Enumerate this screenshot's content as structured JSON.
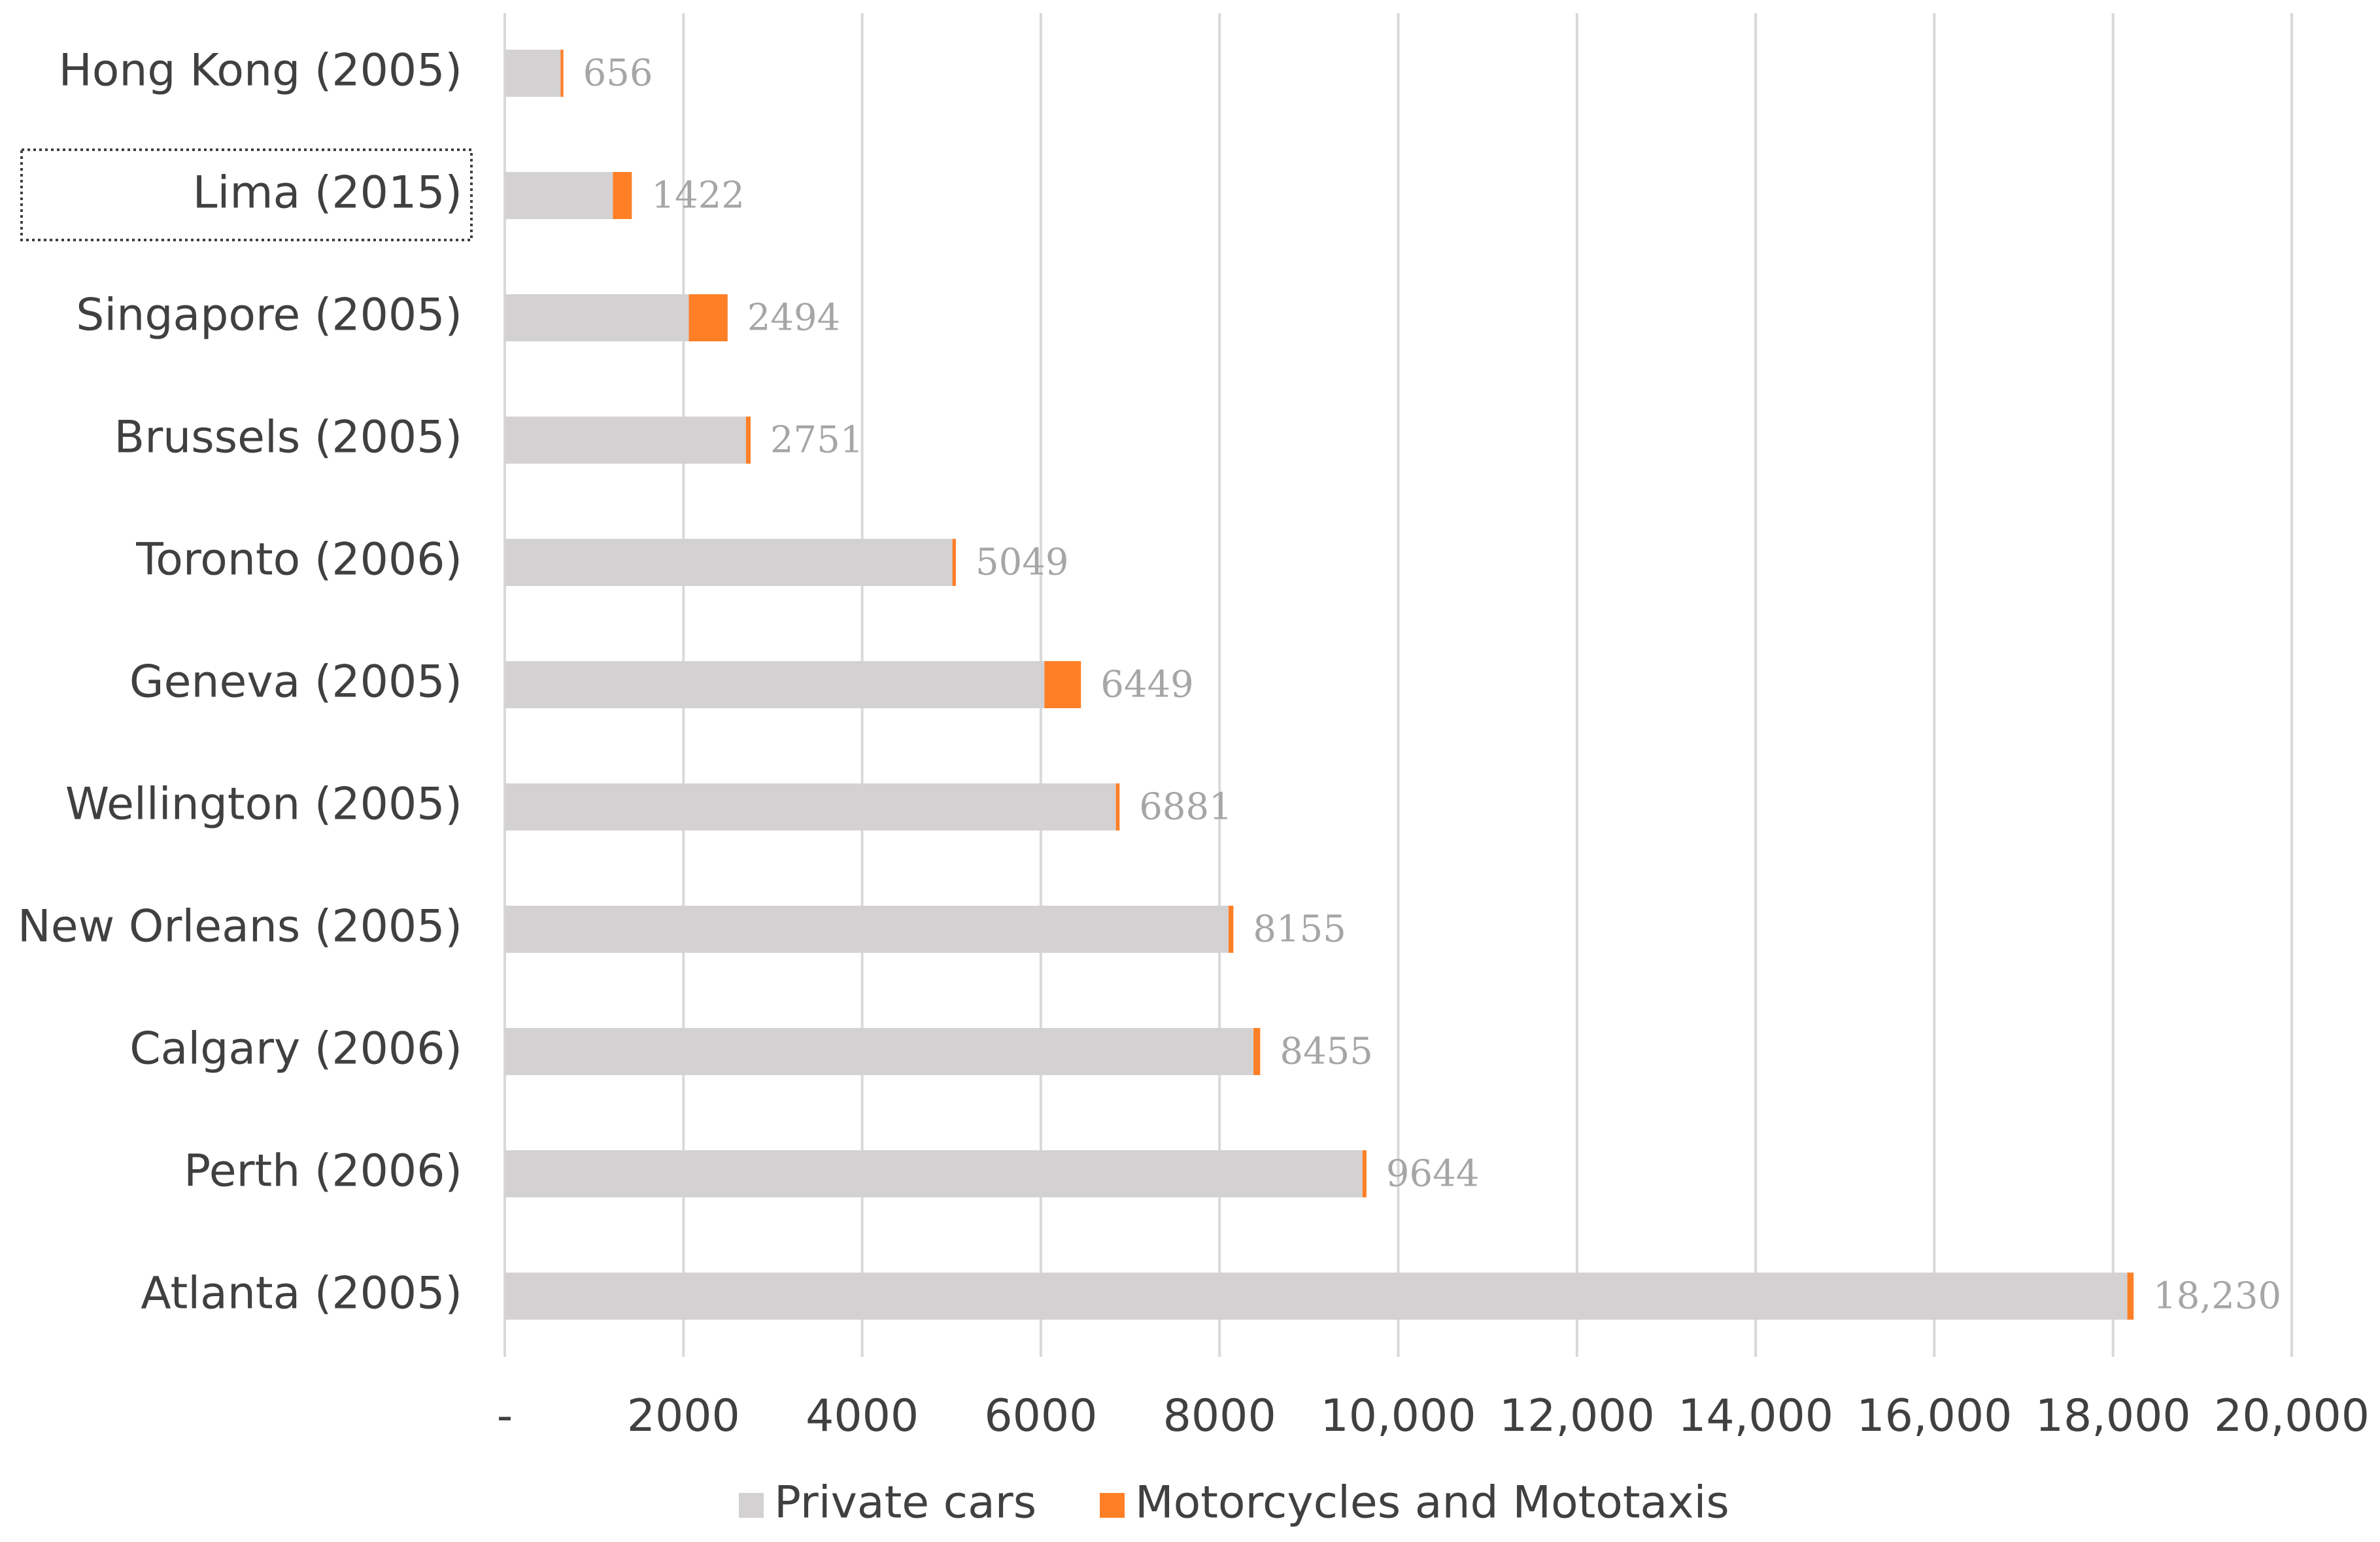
{
  "chart_data": {
    "type": "bar",
    "orientation": "horizontal",
    "stacked": true,
    "categories": [
      "Hong Kong (2005)",
      "Lima (2015)",
      "Singapore (2005)",
      "Brussels (2005)",
      "Toronto (2006)",
      "Geneva (2005)",
      "Wellington (2005)",
      "New Orleans (2005)",
      "Calgary (2006)",
      "Perth (2006)",
      "Atlanta (2005)"
    ],
    "series": [
      {
        "name": "Private cars",
        "color": "#d3d1d1",
        "values": [
          625,
          1210,
          2060,
          2700,
          5010,
          6040,
          6840,
          8100,
          8380,
          9600,
          18160
        ]
      },
      {
        "name": "Motorcycles and Mototaxis",
        "color": "#ff7f27",
        "values": [
          31,
          212,
          434,
          51,
          39,
          409,
          41,
          55,
          75,
          44,
          70
        ]
      }
    ],
    "totals": [
      656,
      1422,
      2494,
      2751,
      5049,
      6449,
      6881,
      8155,
      8455,
      9644,
      18230
    ],
    "total_labels": [
      "656",
      "1422",
      "2494",
      "2751",
      "5049",
      "6449",
      "6881",
      "8155",
      "8455",
      "9644",
      "18,230"
    ],
    "xlim": [
      0,
      20000
    ],
    "x_ticks": [
      0,
      2000,
      4000,
      6000,
      8000,
      10000,
      12000,
      14000,
      16000,
      18000,
      20000
    ],
    "x_tick_labels": [
      "-",
      "2000",
      "4000",
      "6000",
      "8000",
      "10,000",
      "12,000",
      "14,000",
      "16,000",
      "18,000",
      "20,000"
    ],
    "grid": true,
    "legend_position": "bottom",
    "selected_category": "Lima (2015)"
  }
}
